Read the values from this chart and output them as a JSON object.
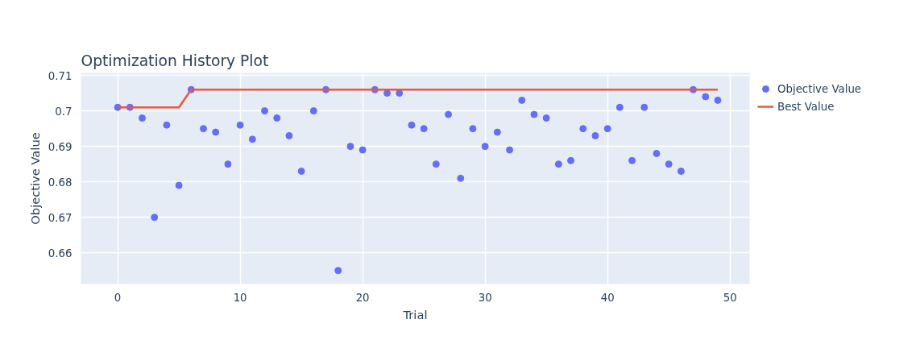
{
  "chart_data": {
    "type": "scatter",
    "title": "Optimization History Plot",
    "xlabel": "Trial",
    "ylabel": "Objective Value",
    "x": [
      0,
      1,
      2,
      3,
      4,
      5,
      6,
      7,
      8,
      9,
      10,
      11,
      12,
      13,
      14,
      15,
      16,
      17,
      18,
      19,
      20,
      21,
      22,
      23,
      24,
      25,
      26,
      27,
      28,
      29,
      30,
      31,
      32,
      33,
      34,
      35,
      36,
      37,
      38,
      39,
      40,
      41,
      42,
      43,
      44,
      45,
      46,
      47,
      48,
      49
    ],
    "series": [
      {
        "name": "Objective Value",
        "color": "#636efa",
        "values": [
          0.701,
          0.701,
          0.698,
          0.67,
          0.696,
          0.679,
          0.706,
          0.695,
          0.694,
          0.685,
          0.696,
          0.692,
          0.7,
          0.698,
          0.693,
          0.683,
          0.7,
          0.706,
          0.655,
          0.69,
          0.689,
          0.706,
          0.705,
          0.705,
          0.696,
          0.695,
          0.685,
          0.699,
          0.681,
          0.695,
          0.69,
          0.694,
          0.689,
          0.703,
          0.699,
          0.698,
          0.685,
          0.686,
          0.695,
          0.693,
          0.695,
          0.701,
          0.686,
          0.701,
          0.688,
          0.685,
          0.683,
          0.706,
          0.704,
          0.703
        ]
      },
      {
        "name": "Best Value",
        "type": "line",
        "marker": "none",
        "color": "#ef553b",
        "values": [
          0.701,
          0.701,
          0.701,
          0.701,
          0.701,
          0.701,
          0.706,
          0.706,
          0.706,
          0.706,
          0.706,
          0.706,
          0.706,
          0.706,
          0.706,
          0.706,
          0.706,
          0.706,
          0.706,
          0.706,
          0.706,
          0.706,
          0.706,
          0.706,
          0.706,
          0.706,
          0.706,
          0.706,
          0.706,
          0.706,
          0.706,
          0.706,
          0.706,
          0.706,
          0.706,
          0.706,
          0.706,
          0.706,
          0.706,
          0.706,
          0.706,
          0.706,
          0.706,
          0.706,
          0.706,
          0.706,
          0.706,
          0.706,
          0.706,
          0.706
        ]
      }
    ],
    "xlim": [
      -3,
      51.6
    ],
    "xticks": [
      0,
      10,
      20,
      30,
      40,
      50
    ],
    "ylim": [
      0.6512,
      0.7107
    ],
    "yticks": [
      0.66,
      0.67,
      0.68,
      0.69,
      0.7,
      0.71
    ],
    "grid": true,
    "legend": "top right",
    "marker": "circle",
    "line_style": "solid"
  }
}
